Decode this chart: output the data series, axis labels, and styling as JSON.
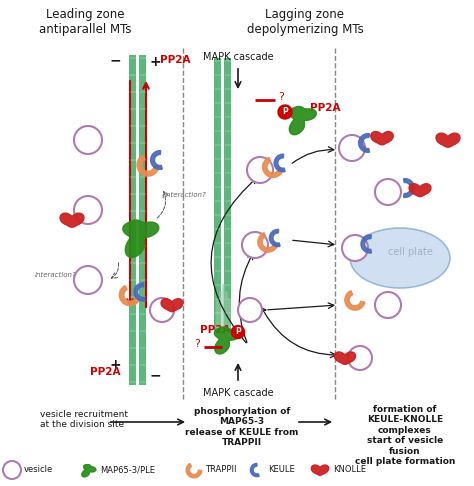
{
  "title_left": "Leading zone\nantiparallel MTs",
  "title_right": "Lagging zone\ndepolymerizing MTs",
  "bg_color": "#ffffff",
  "text_color_black": "#1a1a1a",
  "text_color_red": "#cc0000",
  "mt_green": "#5cb87a",
  "mt_stripe": "#ffffff",
  "vesicle_edge": "#b07ab0",
  "map65_color": "#2a8c1a",
  "trappii_color": "#e88c50",
  "keule_color": "#4a6abe",
  "knolle_color": "#cc2222",
  "cell_plate_color": "#c5d8ef",
  "cell_plate_edge": "#8aaccf",
  "divider_color": "#888888",
  "bottom_desc_left": "vesicle recruitment\nat the division site",
  "bottom_desc_mid": "phosphorylation of\nMAP65-3\nrelease of KEULE from\nTRAPPII",
  "bottom_desc_right": "formation of\nKEULE-KNOLLE\ncomplexes\nstart of vesicle\nfusion\ncell plate formation"
}
